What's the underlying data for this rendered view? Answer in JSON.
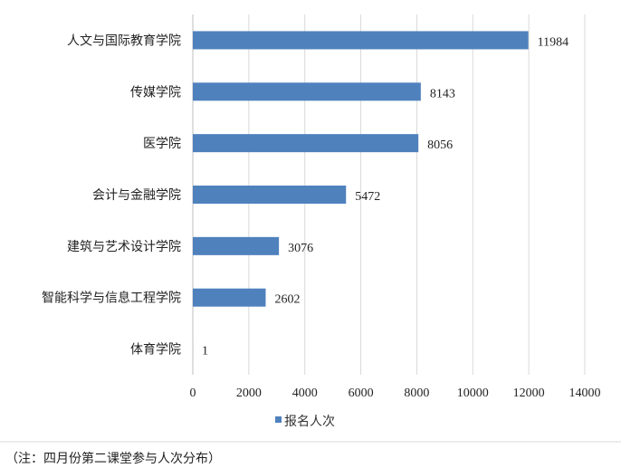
{
  "chart_data": {
    "type": "bar",
    "orientation": "horizontal",
    "categories": [
      "人文与国际教育学院",
      "传媒学院",
      "医学院",
      "会计与金融学院",
      "建筑与艺术设计学院",
      "智能科学与信息工程学院",
      "体育学院"
    ],
    "series": [
      {
        "name": "报名人次",
        "values": [
          11984,
          8143,
          8056,
          5472,
          3076,
          2602,
          1
        ]
      }
    ],
    "xlim": [
      0,
      14000
    ],
    "xticks": [
      0,
      2000,
      4000,
      6000,
      8000,
      10000,
      12000,
      14000
    ],
    "grid": "vertical",
    "legend": "bottom",
    "data_labels": true,
    "color": "#4f81bd"
  },
  "note": "（注：四月份第二课堂参与人次分布）"
}
